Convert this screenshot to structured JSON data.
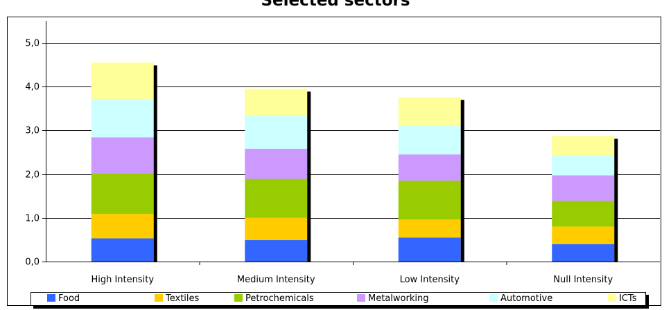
{
  "chart_data": {
    "type": "bar",
    "stacked": true,
    "title": "Selected sectors",
    "xlabel": "",
    "ylabel": "",
    "ylim": [
      0,
      5.5
    ],
    "yticks": [
      "0,0",
      "1,0",
      "2,0",
      "3,0",
      "4,0",
      "5,0"
    ],
    "ytick_values": [
      0,
      1,
      2,
      3,
      4,
      5
    ],
    "grid": true,
    "legend_position": "bottom",
    "categories": [
      "High Intensity",
      "Medium Intensity",
      "Low Intensity",
      "Null Intensity"
    ],
    "series": [
      {
        "name": "Food",
        "color": "#3366ff",
        "values": [
          0.53,
          0.49,
          0.55,
          0.4
        ]
      },
      {
        "name": "Textiles",
        "color": "#ffcc00",
        "values": [
          0.56,
          0.51,
          0.41,
          0.4
        ]
      },
      {
        "name": "Petrochemicals",
        "color": "#99cc00",
        "values": [
          0.93,
          0.89,
          0.89,
          0.59
        ]
      },
      {
        "name": "Metalworking",
        "color": "#cc99ff",
        "values": [
          0.82,
          0.69,
          0.6,
          0.58
        ]
      },
      {
        "name": "Automotive",
        "color": "#ccffff",
        "values": [
          0.88,
          0.75,
          0.65,
          0.45
        ]
      },
      {
        "name": "ICTs",
        "color": "#ffff99",
        "values": [
          0.83,
          0.62,
          0.66,
          0.45
        ]
      }
    ]
  }
}
